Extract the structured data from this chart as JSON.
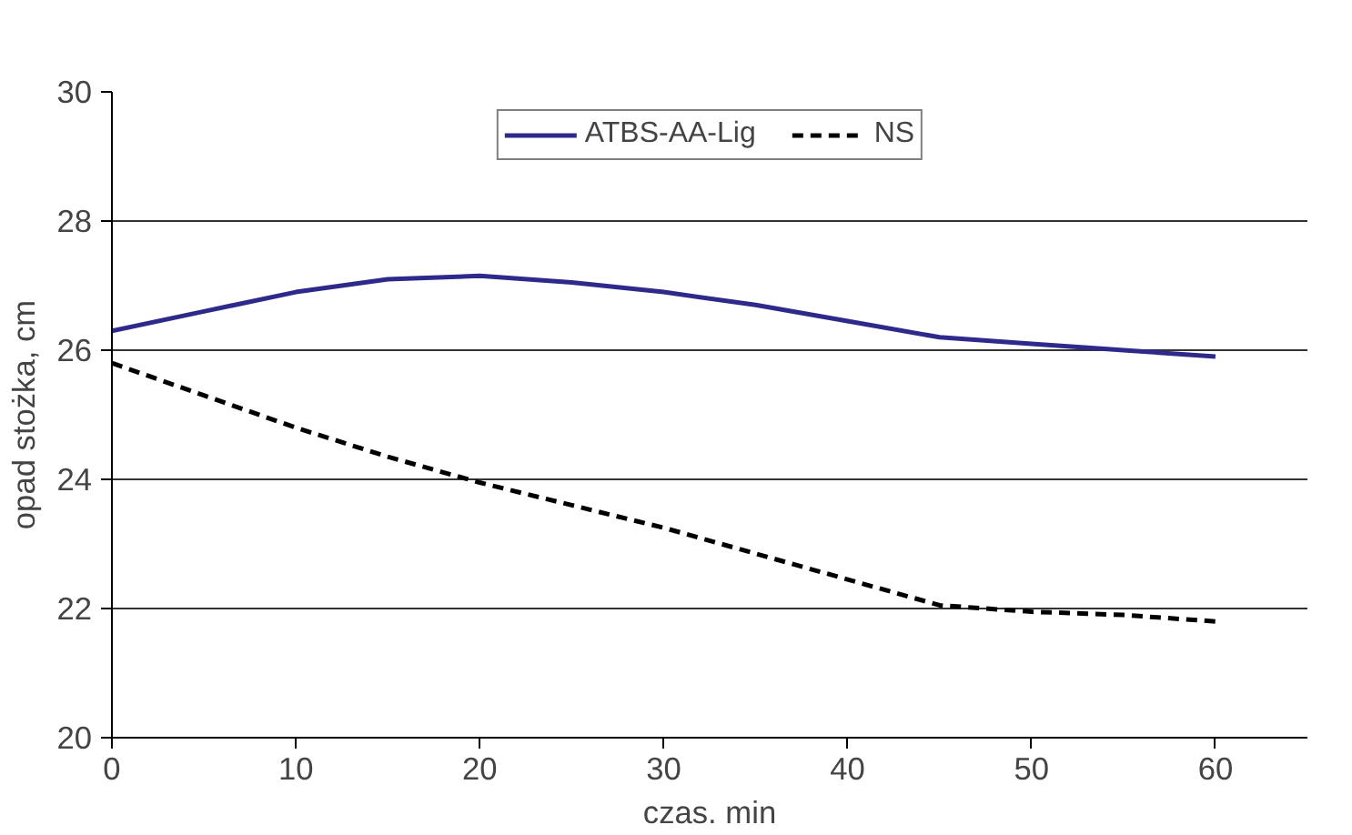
{
  "chart_data": {
    "type": "line",
    "xlabel": "czas. min",
    "ylabel": "opad stożka, cm",
    "xlim": [
      0,
      65
    ],
    "xticks": [
      0,
      10,
      20,
      30,
      40,
      50,
      60
    ],
    "ylim": [
      20,
      30
    ],
    "yticks": [
      20,
      22,
      24,
      26,
      28,
      30
    ],
    "grid": "y",
    "legend": "top",
    "marker": "none",
    "series": [
      {
        "name": "ATBS-AA-Lig",
        "color": "#2e2a8c",
        "line_style": "solid",
        "x": [
          0,
          5,
          10,
          15,
          20,
          25,
          30,
          35,
          40,
          45,
          50,
          55,
          60
        ],
        "values": [
          26.3,
          26.6,
          26.9,
          27.1,
          27.15,
          27.05,
          26.9,
          26.7,
          26.45,
          26.2,
          26.1,
          26.0,
          25.9
        ]
      },
      {
        "name": "NS",
        "color": "#000000",
        "line_style": "dashed",
        "x": [
          0,
          5,
          10,
          15,
          20,
          25,
          30,
          35,
          40,
          45,
          50,
          55,
          60
        ],
        "values": [
          25.8,
          25.3,
          24.8,
          24.35,
          23.95,
          23.6,
          23.25,
          22.85,
          22.45,
          22.05,
          21.95,
          21.9,
          21.8
        ]
      }
    ]
  }
}
